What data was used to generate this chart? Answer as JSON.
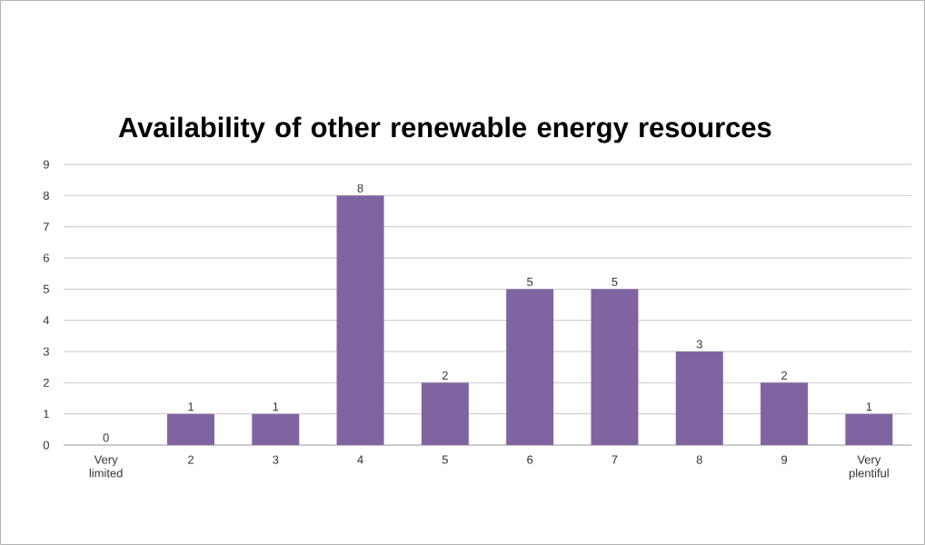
{
  "chart_data": {
    "type": "bar",
    "title": "Availability of other renewable energy resources",
    "categories": [
      "Very limited",
      "2",
      "3",
      "4",
      "5",
      "6",
      "7",
      "8",
      "9",
      "Very plentiful"
    ],
    "values": [
      0,
      1,
      1,
      8,
      2,
      5,
      5,
      3,
      2,
      1
    ],
    "color": "#8064a2",
    "ylim": [
      0,
      9
    ],
    "yticks": [
      0,
      1,
      2,
      3,
      4,
      5,
      6,
      7,
      8,
      9
    ],
    "grid": "y",
    "data_labels": true
  }
}
